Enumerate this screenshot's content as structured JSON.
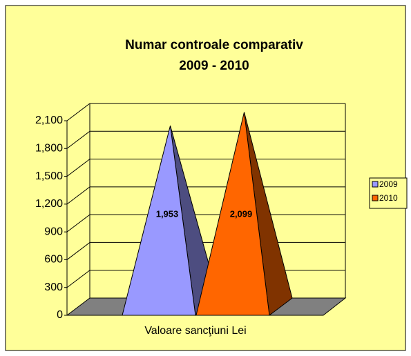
{
  "chart_data": {
    "type": "pyramid3d",
    "title": "Numar controale comparativ",
    "subtitle": "2009 - 2010",
    "categories": [
      "Valoare sancţiuni Lei"
    ],
    "series": [
      {
        "name": "2009",
        "color": "#9999FF",
        "values": [
          1953
        ],
        "value_labels": [
          "1,953"
        ]
      },
      {
        "name": "2010",
        "color": "#FF6600",
        "values": [
          2099
        ],
        "value_labels": [
          "2,099"
        ]
      }
    ],
    "ylim": [
      0,
      2100
    ],
    "yticks": [
      0,
      300,
      600,
      900,
      {
        "value": 1200,
        "label": "1,200"
      },
      {
        "value": 1500,
        "label": "1,500"
      },
      {
        "value": 1800,
        "label": "1,800"
      },
      {
        "value": 2100,
        "label": "2,100"
      }
    ],
    "grid": true,
    "legend": "right"
  }
}
